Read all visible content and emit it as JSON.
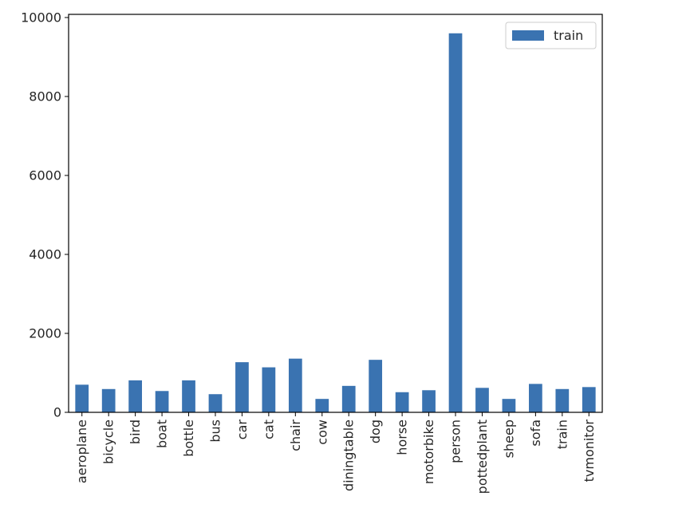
{
  "chart_data": {
    "type": "bar",
    "categories": [
      "aeroplane",
      "bicycle",
      "bird",
      "boat",
      "bottle",
      "bus",
      "car",
      "cat",
      "chair",
      "cow",
      "diningtable",
      "dog",
      "horse",
      "motorbike",
      "person",
      "pottedplant",
      "sheep",
      "sofa",
      "train",
      "tvmonitor"
    ],
    "series": [
      {
        "name": "train",
        "color": "#3a73b1",
        "values": [
          700,
          590,
          810,
          540,
          810,
          460,
          1270,
          1140,
          1360,
          340,
          670,
          1330,
          510,
          560,
          9600,
          620,
          340,
          720,
          590,
          640
        ]
      }
    ],
    "yticks": [
      0,
      2000,
      4000,
      6000,
      8000,
      10000
    ],
    "ylim": [
      0,
      10080
    ],
    "title": "",
    "xlabel": "",
    "ylabel": "",
    "legend": {
      "position": "top-right",
      "labels": [
        "train"
      ]
    }
  }
}
